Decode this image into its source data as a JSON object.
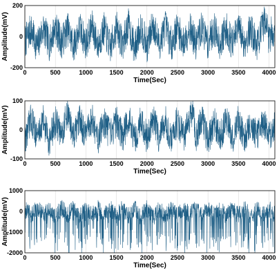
{
  "chart_data": [
    {
      "type": "line",
      "title": "",
      "xlabel": "Time(Sec)",
      "ylabel": "Amplitude(mV)",
      "xlim": [
        0,
        4096
      ],
      "ylim": [
        -200,
        200
      ],
      "xticks": [
        0,
        500,
        1000,
        1500,
        2000,
        2500,
        3000,
        3500,
        4000
      ],
      "yticks": [
        -200,
        0,
        200
      ],
      "grid": true,
      "color": "#1f5f86",
      "series": [
        {
          "x": [
            0,
            100,
            200,
            300,
            400,
            500,
            600,
            700,
            800,
            900,
            1000,
            1100,
            1200,
            1300,
            1400,
            1500,
            1600,
            1700,
            1800,
            1900,
            2000,
            2100,
            2200,
            2300,
            2400,
            2500,
            2600,
            2700,
            2800,
            2900,
            3000,
            3100,
            3200,
            3300,
            3400,
            3500,
            3600,
            3700,
            3800,
            3900,
            3950,
            4000,
            4050,
            4096
          ],
          "y": [
            -60,
            80,
            -120,
            100,
            -90,
            110,
            -70,
            90,
            -110,
            100,
            -80,
            120,
            -100,
            90,
            -130,
            110,
            -90,
            140,
            -150,
            130,
            -120,
            150,
            -100,
            120,
            -90,
            100,
            -80,
            110,
            -90,
            100,
            -70,
            90,
            -80,
            100,
            -90,
            110,
            -80,
            90,
            -100,
            120,
            230,
            -40,
            80,
            0
          ]
        }
      ]
    },
    {
      "type": "line",
      "title": "",
      "xlabel": "Time(Sec)",
      "ylabel": "Amplitude(mV)",
      "xlim": [
        0,
        4096
      ],
      "ylim": [
        -100,
        100
      ],
      "xticks": [
        0,
        500,
        1000,
        1500,
        2000,
        2500,
        3000,
        3500,
        4000
      ],
      "yticks": [
        -100,
        0,
        100
      ],
      "grid": true,
      "color": "#1f5f86",
      "series": [
        {
          "x": [
            0,
            100,
            200,
            300,
            400,
            500,
            600,
            700,
            800,
            900,
            1000,
            1100,
            1200,
            1300,
            1400,
            1500,
            1600,
            1700,
            1800,
            1900,
            2000,
            2100,
            2200,
            2300,
            2400,
            2500,
            2600,
            2700,
            2750,
            2800,
            2900,
            3000,
            3100,
            3200,
            3300,
            3400,
            3500,
            3600,
            3700,
            3800,
            3900,
            4000,
            4096
          ],
          "y": [
            -60,
            70,
            -40,
            60,
            -70,
            50,
            -30,
            110,
            -50,
            60,
            -40,
            70,
            -60,
            50,
            -40,
            60,
            -50,
            70,
            -60,
            60,
            -50,
            70,
            -50,
            60,
            -70,
            60,
            -40,
            50,
            115,
            -60,
            90,
            -80,
            60,
            -50,
            70,
            -60,
            60,
            -50,
            50,
            -40,
            60,
            -30,
            20
          ]
        }
      ]
    },
    {
      "type": "line",
      "title": "",
      "xlabel": "Time(Sec)",
      "ylabel": "Amplitude(mV)",
      "xlim": [
        0,
        4096
      ],
      "ylim": [
        -2000,
        1000
      ],
      "xticks": [
        0,
        500,
        1000,
        1500,
        2000,
        2500,
        3000,
        3500,
        4000
      ],
      "yticks": [
        -2000,
        -1000,
        0,
        1000
      ],
      "grid": true,
      "color": "#1f5f86",
      "series": [
        {
          "x": [
            0,
            100,
            200,
            300,
            400,
            500,
            600,
            700,
            800,
            900,
            1000,
            1100,
            1200,
            1300,
            1400,
            1500,
            1600,
            1700,
            1800,
            1900,
            2000,
            2100,
            2200,
            2300,
            2400,
            2500,
            2600,
            2700,
            2800,
            2900,
            3000,
            3100,
            3200,
            3300,
            3400,
            3500,
            3600,
            3700,
            3800,
            3900,
            4000,
            4096
          ],
          "y": [
            300,
            -1400,
            600,
            -1500,
            500,
            -1600,
            700,
            -1300,
            600,
            -1700,
            800,
            -1500,
            700,
            -1600,
            600,
            -1800,
            700,
            -1500,
            600,
            -1600,
            700,
            -1500,
            600,
            -1600,
            500,
            -1500,
            700,
            -1400,
            600,
            -1600,
            800,
            -1500,
            700,
            -1700,
            600,
            -1500,
            700,
            -1600,
            600,
            -1500,
            500,
            -1200
          ]
        }
      ]
    }
  ]
}
